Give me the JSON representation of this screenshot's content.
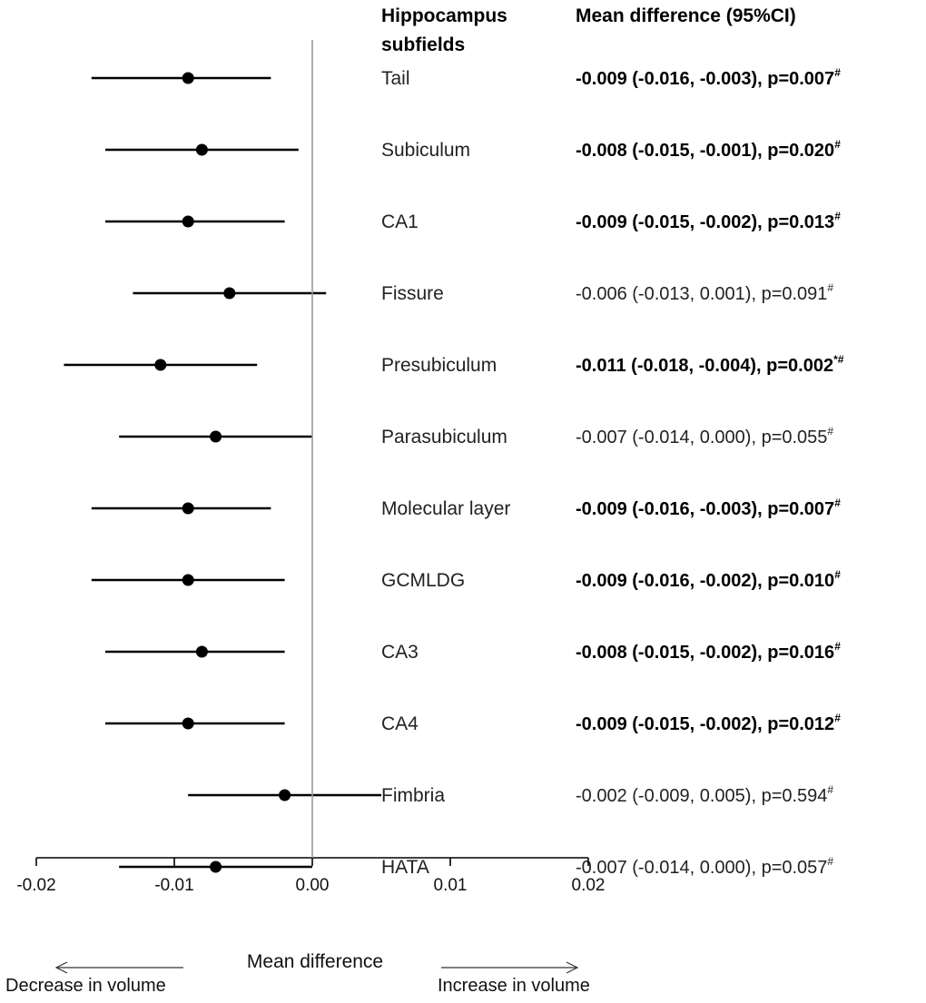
{
  "chart_data": {
    "type": "forest",
    "headers": {
      "label_line1": "Hippocampus",
      "label_line2": "subfields",
      "stat": "Mean difference (95%CI)"
    },
    "xlabel": "Mean difference",
    "xlim": [
      -0.02,
      0.02
    ],
    "ticks": [
      {
        "value": -0.02,
        "label": "-0.02"
      },
      {
        "value": -0.01,
        "label": "-0.01"
      },
      {
        "value": 0.0,
        "label": "0.00"
      },
      {
        "value": 0.01,
        "label": "0.01"
      },
      {
        "value": 0.02,
        "label": "0.02"
      }
    ],
    "reference_line": 0,
    "direction_left": "Decrease in volume",
    "direction_right": "Increase in volume",
    "rows": [
      {
        "label": "Tail",
        "mean": -0.009,
        "lower": -0.016,
        "upper": -0.003,
        "stat_text": "-0.009 (-0.016, -0.003), p=0.007",
        "sup": "#",
        "significant": true
      },
      {
        "label": "Subiculum",
        "mean": -0.008,
        "lower": -0.015,
        "upper": -0.001,
        "stat_text": "-0.008 (-0.015, -0.001), p=0.020",
        "sup": "#",
        "significant": true
      },
      {
        "label": "CA1",
        "mean": -0.009,
        "lower": -0.015,
        "upper": -0.002,
        "stat_text": "-0.009 (-0.015, -0.002), p=0.013",
        "sup": "#",
        "significant": true
      },
      {
        "label": "Fissure",
        "mean": -0.006,
        "lower": -0.013,
        "upper": 0.001,
        "stat_text": "-0.006 (-0.013, 0.001), p=0.091",
        "sup": "#",
        "significant": false
      },
      {
        "label": "Presubiculum",
        "mean": -0.011,
        "lower": -0.018,
        "upper": -0.004,
        "stat_text": "-0.011 (-0.018, -0.004), p=0.002",
        "sup": "*#",
        "significant": true
      },
      {
        "label": "Parasubiculum",
        "mean": -0.007,
        "lower": -0.014,
        "upper": 0.0,
        "stat_text": "-0.007 (-0.014, 0.000), p=0.055",
        "sup": "#",
        "significant": false
      },
      {
        "label": "Molecular layer",
        "mean": -0.009,
        "lower": -0.016,
        "upper": -0.003,
        "stat_text": "-0.009 (-0.016, -0.003), p=0.007",
        "sup": "#",
        "significant": true
      },
      {
        "label": "GCMLDG",
        "mean": -0.009,
        "lower": -0.016,
        "upper": -0.002,
        "stat_text": "-0.009 (-0.016, -0.002), p=0.010",
        "sup": "#",
        "significant": true
      },
      {
        "label": "CA3",
        "mean": -0.008,
        "lower": -0.015,
        "upper": -0.002,
        "stat_text": "-0.008 (-0.015, -0.002), p=0.016",
        "sup": "#",
        "significant": true
      },
      {
        "label": "CA4",
        "mean": -0.009,
        "lower": -0.015,
        "upper": -0.002,
        "stat_text": "-0.009 (-0.015, -0.002), p=0.012",
        "sup": "#",
        "significant": true
      },
      {
        "label": "Fimbria",
        "mean": -0.002,
        "lower": -0.009,
        "upper": 0.005,
        "stat_text": "-0.002 (-0.009, 0.005), p=0.594",
        "sup": "#",
        "significant": false
      },
      {
        "label": "HATA",
        "mean": -0.007,
        "lower": -0.014,
        "upper": 0.0,
        "stat_text": "-0.007 (-0.014, 0.000), p=0.057",
        "sup": "#",
        "significant": false
      }
    ]
  }
}
